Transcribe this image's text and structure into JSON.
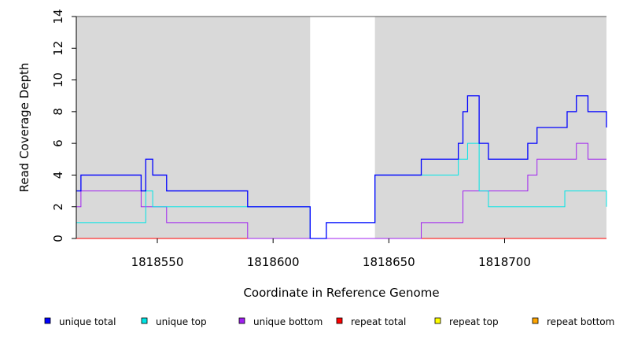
{
  "chart_data": {
    "type": "line",
    "step": true,
    "xlabel": "Coordinate in Reference Genome",
    "ylabel": "Read Coverage Depth",
    "xlim": [
      1818515,
      1818744
    ],
    "ylim": [
      0,
      14
    ],
    "x_ticks": [
      1818550,
      1818600,
      1818650,
      1818700
    ],
    "y_ticks": [
      0,
      2,
      4,
      6,
      8,
      10,
      12,
      14
    ],
    "grid": false,
    "legend_position": "bottom",
    "background_regions": [
      {
        "from": 1818515,
        "to": 1818616,
        "color": "#d9d9d9"
      },
      {
        "from": 1818644,
        "to": 1818744,
        "color": "#d9d9d9"
      }
    ],
    "series": [
      {
        "name": "unique total",
        "color": "#0000ff",
        "x": [
          1818515,
          1818517,
          1818543,
          1818545,
          1818548,
          1818554,
          1818589,
          1818616,
          1818623,
          1818644,
          1818664,
          1818680,
          1818682,
          1818684,
          1818689,
          1818693,
          1818710,
          1818714,
          1818727,
          1818731,
          1818736,
          1818744
        ],
        "y": [
          3,
          4,
          3,
          5,
          4,
          3,
          2,
          0,
          1,
          4,
          5,
          6,
          8,
          9,
          6,
          5,
          6,
          7,
          8,
          9,
          8,
          7
        ]
      },
      {
        "name": "unique top",
        "color": "#00e5e5",
        "x": [
          1818515,
          1818545,
          1818548,
          1818616,
          1818623,
          1818644,
          1818680,
          1818684,
          1818689,
          1818693,
          1818726,
          1818744
        ],
        "y": [
          1,
          3,
          2,
          0,
          1,
          4,
          5,
          6,
          3,
          2,
          3,
          2
        ]
      },
      {
        "name": "unique bottom",
        "color": "#a020f0",
        "x": [
          1818515,
          1818517,
          1818543,
          1818554,
          1818589,
          1818664,
          1818682,
          1818710,
          1818714,
          1818731,
          1818736,
          1818744
        ],
        "y": [
          2,
          3,
          2,
          1,
          0,
          1,
          3,
          4,
          5,
          6,
          5,
          5
        ]
      },
      {
        "name": "repeat total",
        "color": "#ff0000",
        "x": [
          1818515,
          1818744
        ],
        "y": [
          0,
          0
        ]
      },
      {
        "name": "repeat top",
        "color": "#ffff00",
        "x": [
          1818515,
          1818744
        ],
        "y": [
          0,
          0
        ]
      },
      {
        "name": "repeat bottom",
        "color": "#ffa500",
        "x": [
          1818515,
          1818744
        ],
        "y": [
          0,
          0
        ]
      }
    ]
  }
}
